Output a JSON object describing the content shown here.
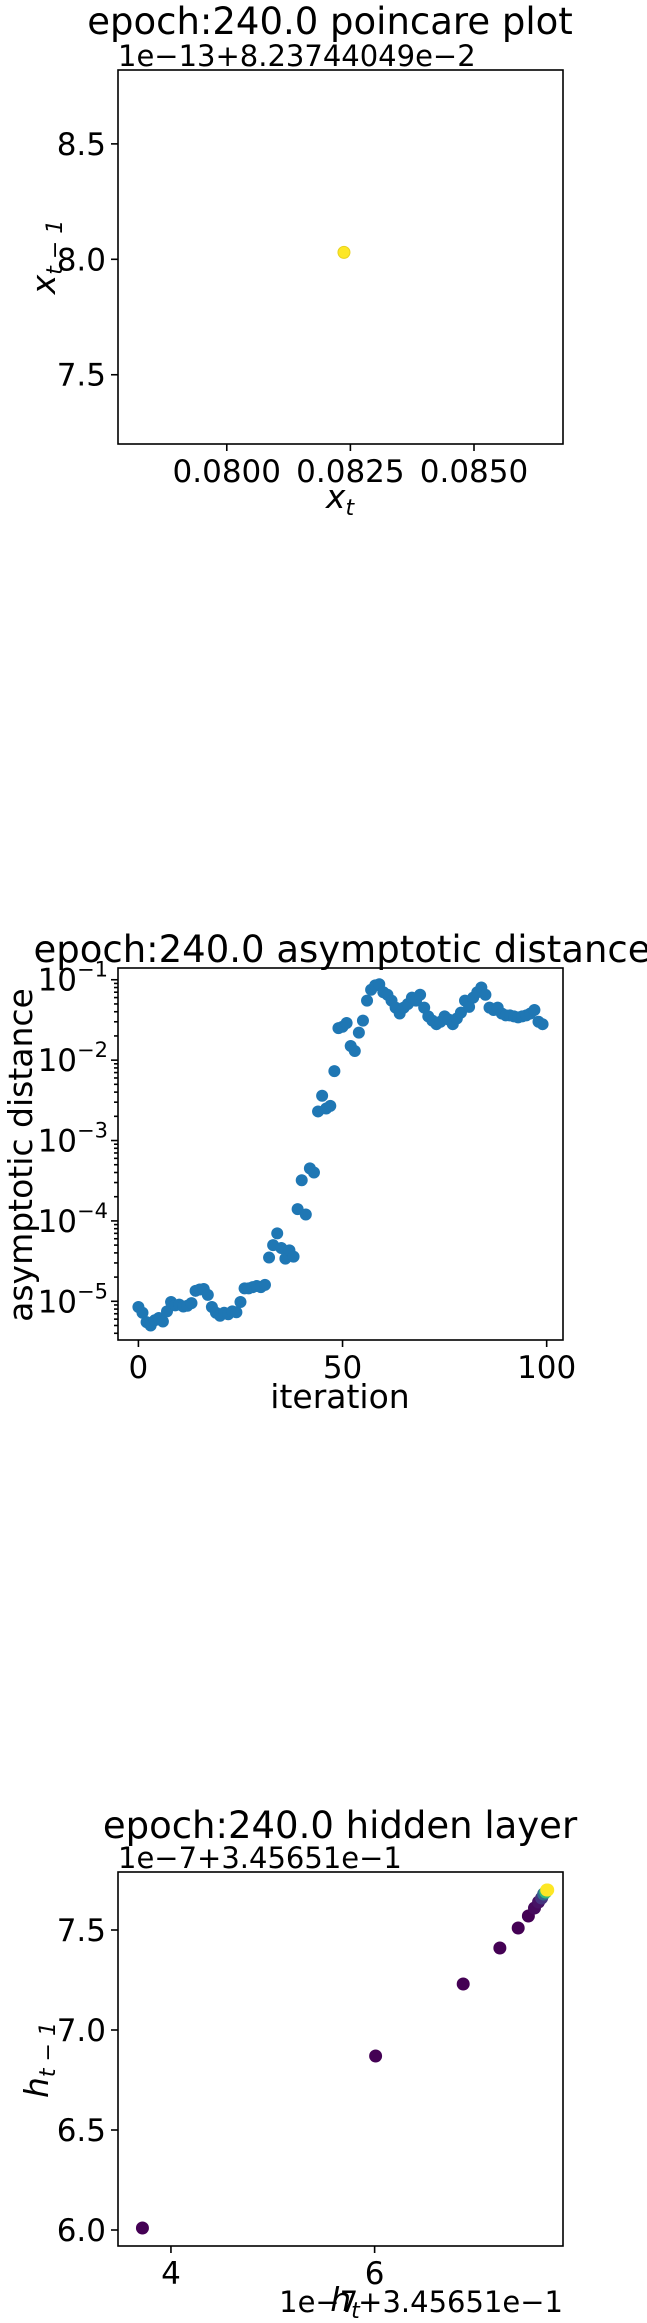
{
  "chart_data": [
    {
      "type": "scatter",
      "title": "epoch:240.0 poincare plot",
      "axis_offset_text": "1e−13+8.23744049e−2",
      "xlabel": "x",
      "xlabel_sub": "t",
      "ylabel": "x",
      "ylabel_sub": "t − 1",
      "xlim": [
        0.0778,
        0.0868
      ],
      "ylim": [
        7.2,
        8.82
      ],
      "xticks": [
        0.08,
        0.0825,
        0.085
      ],
      "xtick_labels": [
        "0.0800",
        "0.0825",
        "0.0850"
      ],
      "yticks": [
        7.5,
        8.0,
        8.5
      ],
      "ytick_labels": [
        "7.5",
        "8.0",
        "8.5"
      ],
      "grid": false,
      "points": [
        {
          "x": 0.08237,
          "y": 8.03,
          "color": "#fde725"
        }
      ]
    },
    {
      "type": "scatter",
      "title": "epoch:240.0 asymptotic distance",
      "xlabel": "iteration",
      "ylabel": "asymptotic distance",
      "yscale": "log",
      "xlim": [
        -5,
        104
      ],
      "ylim": [
        3.3e-06,
        0.14
      ],
      "xticks": [
        0,
        50,
        100
      ],
      "xtick_labels": [
        "0",
        "50",
        "100"
      ],
      "yticks": [
        1e-05,
        0.0001,
        0.001,
        0.01,
        0.1
      ],
      "ytick_labels": [
        "10",
        "10",
        "10",
        "10",
        "10"
      ],
      "ytick_exponents": [
        "−5",
        "−4",
        "−3",
        "−2",
        "−1"
      ],
      "grid": false,
      "color": "#1f77b4",
      "x": [
        0,
        1,
        2,
        3,
        4,
        5,
        6,
        7,
        8,
        9,
        10,
        11,
        12,
        13,
        14,
        15,
        16,
        17,
        18,
        19,
        20,
        21,
        22,
        23,
        24,
        25,
        26,
        27,
        28,
        29,
        30,
        31,
        32,
        33,
        34,
        35,
        36,
        37,
        38,
        39,
        40,
        41,
        42,
        43,
        44,
        45,
        46,
        47,
        48,
        49,
        50,
        51,
        52,
        53,
        54,
        55,
        56,
        57,
        58,
        59,
        60,
        61,
        62,
        63,
        64,
        65,
        66,
        67,
        68,
        69,
        70,
        71,
        72,
        73,
        74,
        75,
        76,
        77,
        78,
        79,
        80,
        81,
        82,
        83,
        84,
        85,
        86,
        87,
        88,
        89,
        90,
        91,
        92,
        93,
        94,
        95,
        96,
        97,
        98,
        99
      ],
      "y": [
        8.5e-06,
        7.2e-06,
        5.5e-06,
        5e-06,
        5.8e-06,
        6.2e-06,
        5.6e-06,
        7.5e-06,
        9.8e-06,
        8.9e-06,
        9.1e-06,
        8.6e-06,
        8.8e-06,
        9.5e-06,
        1.35e-05,
        1.4e-05,
        1.42e-05,
        1.2e-05,
        8.5e-06,
        7.2e-06,
        6.6e-06,
        7.2e-06,
        6.9e-06,
        7.5e-06,
        7.3e-06,
        9.8e-06,
        1.45e-05,
        1.45e-05,
        1.5e-05,
        1.55e-05,
        1.5e-05,
        1.6e-05,
        3.5e-05,
        5e-05,
        7e-05,
        4.6e-05,
        3.4e-05,
        4.3e-05,
        3.6e-05,
        0.00014,
        0.00032,
        0.00012,
        0.00045,
        0.0004,
        0.0023,
        0.0036,
        0.0025,
        0.0027,
        0.0073,
        0.025,
        0.026,
        0.029,
        0.015,
        0.013,
        0.022,
        0.031,
        0.055,
        0.075,
        0.085,
        0.088,
        0.07,
        0.065,
        0.055,
        0.045,
        0.038,
        0.045,
        0.05,
        0.06,
        0.055,
        0.065,
        0.045,
        0.035,
        0.031,
        0.028,
        0.03,
        0.035,
        0.032,
        0.028,
        0.033,
        0.039,
        0.055,
        0.046,
        0.06,
        0.07,
        0.08,
        0.065,
        0.045,
        0.042,
        0.045,
        0.038,
        0.036,
        0.036,
        0.035,
        0.034,
        0.035,
        0.036,
        0.038,
        0.042,
        0.03,
        0.028
      ]
    },
    {
      "type": "scatter",
      "title": "epoch:240.0 hidden layer",
      "x_offset_text": "1e−7+3.45651e−1",
      "y_offset_text": "1e−7+3.45651e−1",
      "xlabel": "h",
      "xlabel_sub": "t",
      "ylabel": "h",
      "ylabel_sub": "t − 1",
      "xlim": [
        3.48,
        7.85
      ],
      "ylim": [
        5.92,
        7.79
      ],
      "xticks": [
        4,
        6
      ],
      "xtick_labels": [
        "4",
        "6"
      ],
      "yticks": [
        6.0,
        6.5,
        7.0,
        7.5
      ],
      "ytick_labels": [
        "6.0",
        "6.5",
        "7.0",
        "7.5"
      ],
      "grid": false,
      "colormap": "viridis",
      "points": [
        {
          "x": 3.72,
          "y": 6.01,
          "color": "#440154"
        },
        {
          "x": 6.01,
          "y": 6.87,
          "color": "#440154"
        },
        {
          "x": 6.87,
          "y": 7.23,
          "color": "#440154"
        },
        {
          "x": 7.23,
          "y": 7.41,
          "color": "#440154"
        },
        {
          "x": 7.41,
          "y": 7.51,
          "color": "#440154"
        },
        {
          "x": 7.51,
          "y": 7.57,
          "color": "#440154"
        },
        {
          "x": 7.57,
          "y": 7.61,
          "color": "#460a5d"
        },
        {
          "x": 7.61,
          "y": 7.64,
          "color": "#471365"
        },
        {
          "x": 7.64,
          "y": 7.66,
          "color": "#46337e"
        },
        {
          "x": 7.66,
          "y": 7.68,
          "color": "#31688e"
        },
        {
          "x": 7.68,
          "y": 7.69,
          "color": "#35b779"
        },
        {
          "x": 7.69,
          "y": 7.7,
          "color": "#fde725"
        },
        {
          "x": 7.7,
          "y": 7.7,
          "color": "#fde725"
        }
      ]
    }
  ]
}
